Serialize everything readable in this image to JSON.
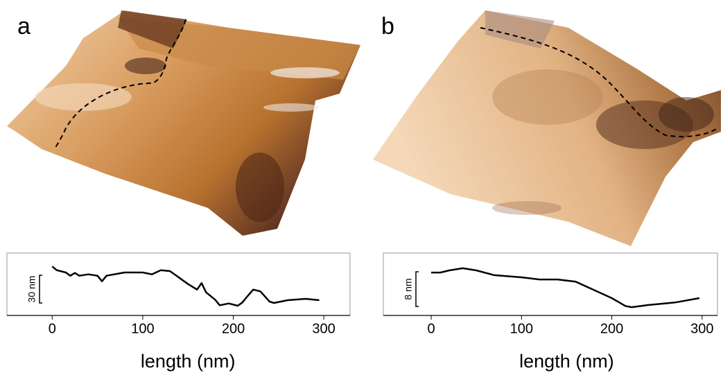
{
  "chart_data": [
    {
      "type": "line",
      "panel_label": "a",
      "x": [
        0,
        5,
        15,
        20,
        25,
        30,
        40,
        50,
        55,
        60,
        80,
        100,
        110,
        120,
        130,
        140,
        150,
        160,
        165,
        170,
        180,
        185,
        195,
        205,
        210,
        215,
        222,
        230,
        240,
        245,
        260,
        280,
        295
      ],
      "values": [
        53,
        49,
        46.5,
        43,
        46,
        43,
        44.5,
        43,
        37,
        43,
        46.5,
        46.5,
        44.5,
        49,
        48,
        41,
        34,
        28,
        35,
        25,
        17,
        11,
        13,
        10.5,
        14,
        20,
        28,
        26,
        15,
        13.5,
        16.5,
        18,
        16.5
      ],
      "color": "#000000",
      "xlim": [
        -50,
        329
      ],
      "xticks": [
        0,
        100,
        200,
        300
      ],
      "ylim": [
        0,
        67.5
      ],
      "xlabel": "length (nm)",
      "scale_bar": {
        "value": 30,
        "label": "30 nm"
      }
    },
    {
      "type": "line",
      "panel_label": "b",
      "x": [
        0,
        10,
        20,
        35,
        50,
        70,
        100,
        120,
        140,
        160,
        180,
        200,
        215,
        222,
        240,
        270,
        297
      ],
      "values": [
        9.9,
        9.9,
        10.4,
        10.9,
        10.4,
        9.3,
        8.8,
        8.3,
        8.3,
        7.8,
        5.9,
        4,
        2.2,
        1.9,
        2.4,
        3,
        4
      ],
      "color": "#000000",
      "xlim": [
        -53,
        317
      ],
      "xticks": [
        0,
        100,
        200,
        300
      ],
      "ylim": [
        0,
        14.4
      ],
      "xlabel": "length (nm)",
      "scale_bar": {
        "value": 8,
        "label": "8 nm"
      }
    }
  ]
}
